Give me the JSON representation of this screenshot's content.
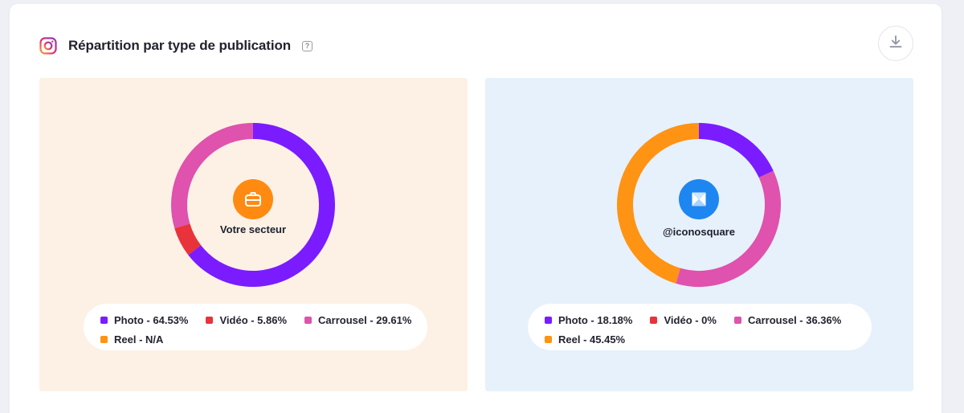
{
  "header": {
    "title": "Répartition par type de publication",
    "help_symbol": "?",
    "icons": {
      "platform": "instagram-icon",
      "help": "help-icon",
      "download": "download-icon"
    }
  },
  "colors": {
    "Photo": "#7a1cff",
    "Vidéo": "#e8333a",
    "Carrousel": "#df52ad",
    "Reel": "#ff9313",
    "sector_badge": "#ff8a12",
    "iconosquare_badge": "#1e86f0"
  },
  "chart_data": [
    {
      "type": "pie",
      "center_label": "Votre secteur",
      "center_icon": "briefcase-icon",
      "categories": [
        "Photo",
        "Vidéo",
        "Carrousel",
        "Reel"
      ],
      "values": [
        64.53,
        5.86,
        29.61,
        null
      ],
      "legend": [
        "Photo - 64.53%",
        "Vidéo - 5.86%",
        "Carrousel - 29.61%",
        "Reel - N/A"
      ]
    },
    {
      "type": "pie",
      "center_label": "@iconosquare",
      "center_icon": "iconosquare-logo-icon",
      "categories": [
        "Photo",
        "Vidéo",
        "Carrousel",
        "Reel"
      ],
      "values": [
        18.18,
        0,
        36.36,
        45.45
      ],
      "legend": [
        "Photo - 18.18%",
        "Vidéo - 0%",
        "Carrousel - 36.36%",
        "Reel - 45.45%"
      ]
    }
  ]
}
